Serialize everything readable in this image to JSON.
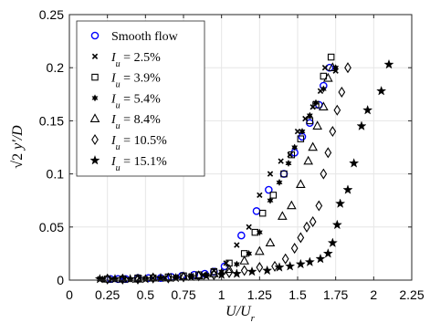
{
  "chart_data": {
    "type": "scatter",
    "xlabel": "U/U_r",
    "ylabel": "√2 y′/D",
    "xlim": [
      0,
      2.25
    ],
    "ylim": [
      0,
      0.25
    ],
    "xticks": [
      "0",
      "0.25",
      "0.5",
      "0.75",
      "1",
      "1.25",
      "1.5",
      "1.75",
      "2",
      "2.25"
    ],
    "yticks": [
      "0",
      "0.05",
      "0.1",
      "0.15",
      "0.2",
      "0.25"
    ],
    "grid": true,
    "legend_position": "top-left",
    "series": [
      {
        "name": "Smooth flow",
        "marker": "circle",
        "color": "#0000ff",
        "points": [
          [
            0.27,
            0.001
          ],
          [
            0.32,
            0.001
          ],
          [
            0.37,
            0.001
          ],
          [
            0.45,
            0.002
          ],
          [
            0.52,
            0.002
          ],
          [
            0.6,
            0.002
          ],
          [
            0.67,
            0.003
          ],
          [
            0.74,
            0.004
          ],
          [
            0.82,
            0.005
          ],
          [
            0.89,
            0.006
          ],
          [
            0.95,
            0.008
          ],
          [
            1.02,
            0.013
          ],
          [
            1.13,
            0.042
          ],
          [
            1.23,
            0.065
          ],
          [
            1.31,
            0.085
          ],
          [
            1.41,
            0.1
          ],
          [
            1.48,
            0.12
          ],
          [
            1.53,
            0.135
          ],
          [
            1.58,
            0.148
          ],
          [
            1.64,
            0.165
          ],
          [
            1.67,
            0.183
          ],
          [
            1.71,
            0.2
          ]
        ]
      },
      {
        "name": "I_u = 2.5%",
        "marker": "x",
        "color": "#000000",
        "points": [
          [
            0.2,
            0.001
          ],
          [
            0.28,
            0.001
          ],
          [
            0.36,
            0.001
          ],
          [
            0.46,
            0.002
          ],
          [
            0.55,
            0.002
          ],
          [
            0.63,
            0.002
          ],
          [
            0.7,
            0.003
          ],
          [
            0.8,
            0.004
          ],
          [
            0.88,
            0.005
          ],
          [
            0.95,
            0.009
          ],
          [
            1.03,
            0.016
          ],
          [
            1.1,
            0.033
          ],
          [
            1.18,
            0.05
          ],
          [
            1.25,
            0.08
          ],
          [
            1.32,
            0.1
          ],
          [
            1.39,
            0.112
          ],
          [
            1.45,
            0.118
          ],
          [
            1.5,
            0.14
          ],
          [
            1.55,
            0.152
          ],
          [
            1.6,
            0.163
          ],
          [
            1.65,
            0.178
          ],
          [
            1.68,
            0.2
          ],
          [
            1.75,
            0.197
          ]
        ]
      },
      {
        "name": "I_u = 3.9%",
        "marker": "square",
        "color": "#000000",
        "points": [
          [
            0.25,
            0.001
          ],
          [
            0.35,
            0.001
          ],
          [
            0.45,
            0.002
          ],
          [
            0.55,
            0.002
          ],
          [
            0.65,
            0.003
          ],
          [
            0.75,
            0.004
          ],
          [
            0.85,
            0.005
          ],
          [
            0.95,
            0.008
          ],
          [
            1.05,
            0.016
          ],
          [
            1.15,
            0.025
          ],
          [
            1.22,
            0.045
          ],
          [
            1.27,
            0.063
          ],
          [
            1.34,
            0.08
          ],
          [
            1.41,
            0.1
          ],
          [
            1.46,
            0.118
          ],
          [
            1.52,
            0.133
          ],
          [
            1.58,
            0.15
          ],
          [
            1.62,
            0.165
          ],
          [
            1.67,
            0.192
          ],
          [
            1.72,
            0.21
          ]
        ]
      },
      {
        "name": "I_u = 5.4%",
        "marker": "hexagram",
        "color": "#000000",
        "points": [
          [
            0.22,
            0.001
          ],
          [
            0.3,
            0.001
          ],
          [
            0.4,
            0.001
          ],
          [
            0.5,
            0.002
          ],
          [
            0.6,
            0.002
          ],
          [
            0.7,
            0.003
          ],
          [
            0.8,
            0.004
          ],
          [
            0.9,
            0.005
          ],
          [
            1.0,
            0.008
          ],
          [
            1.1,
            0.015
          ],
          [
            1.18,
            0.025
          ],
          [
            1.25,
            0.045
          ],
          [
            1.32,
            0.075
          ],
          [
            1.38,
            0.092
          ],
          [
            1.44,
            0.11
          ],
          [
            1.48,
            0.125
          ],
          [
            1.53,
            0.14
          ],
          [
            1.58,
            0.155
          ],
          [
            1.62,
            0.167
          ],
          [
            1.67,
            0.18
          ],
          [
            1.75,
            0.2
          ]
        ]
      },
      {
        "name": "I_u = 8.4%",
        "marker": "triangle",
        "color": "#000000",
        "points": [
          [
            0.25,
            0.001
          ],
          [
            0.35,
            0.001
          ],
          [
            0.45,
            0.001
          ],
          [
            0.55,
            0.002
          ],
          [
            0.65,
            0.002
          ],
          [
            0.75,
            0.003
          ],
          [
            0.85,
            0.004
          ],
          [
            0.95,
            0.006
          ],
          [
            1.05,
            0.01
          ],
          [
            1.15,
            0.018
          ],
          [
            1.25,
            0.027
          ],
          [
            1.32,
            0.035
          ],
          [
            1.4,
            0.06
          ],
          [
            1.46,
            0.07
          ],
          [
            1.52,
            0.09
          ],
          [
            1.57,
            0.112
          ],
          [
            1.6,
            0.125
          ],
          [
            1.63,
            0.145
          ],
          [
            1.67,
            0.163
          ],
          [
            1.7,
            0.19
          ],
          [
            1.73,
            0.2
          ]
        ]
      },
      {
        "name": "I_u = 10.5%",
        "marker": "diamond",
        "color": "#000000",
        "points": [
          [
            0.25,
            0.001
          ],
          [
            0.35,
            0.001
          ],
          [
            0.45,
            0.001
          ],
          [
            0.55,
            0.002
          ],
          [
            0.65,
            0.002
          ],
          [
            0.75,
            0.003
          ],
          [
            0.85,
            0.004
          ],
          [
            0.95,
            0.005
          ],
          [
            1.05,
            0.007
          ],
          [
            1.15,
            0.009
          ],
          [
            1.25,
            0.012
          ],
          [
            1.35,
            0.013
          ],
          [
            1.42,
            0.02
          ],
          [
            1.48,
            0.03
          ],
          [
            1.52,
            0.04
          ],
          [
            1.56,
            0.05
          ],
          [
            1.6,
            0.055
          ],
          [
            1.64,
            0.07
          ],
          [
            1.67,
            0.1
          ],
          [
            1.7,
            0.12
          ],
          [
            1.73,
            0.14
          ],
          [
            1.76,
            0.16
          ],
          [
            1.79,
            0.177
          ],
          [
            1.83,
            0.2
          ]
        ]
      },
      {
        "name": "I_u = 15.1%",
        "marker": "pentagram",
        "color": "#000000",
        "points": [
          [
            0.2,
            0.001
          ],
          [
            0.3,
            0.001
          ],
          [
            0.4,
            0.001
          ],
          [
            0.5,
            0.001
          ],
          [
            0.6,
            0.002
          ],
          [
            0.7,
            0.002
          ],
          [
            0.8,
            0.003
          ],
          [
            0.9,
            0.004
          ],
          [
            1.0,
            0.005
          ],
          [
            1.1,
            0.006
          ],
          [
            1.2,
            0.008
          ],
          [
            1.3,
            0.009
          ],
          [
            1.38,
            0.012
          ],
          [
            1.45,
            0.013
          ],
          [
            1.52,
            0.015
          ],
          [
            1.58,
            0.017
          ],
          [
            1.65,
            0.02
          ],
          [
            1.7,
            0.025
          ],
          [
            1.73,
            0.035
          ],
          [
            1.76,
            0.052
          ],
          [
            1.78,
            0.072
          ],
          [
            1.83,
            0.085
          ],
          [
            1.87,
            0.11
          ],
          [
            1.92,
            0.145
          ],
          [
            1.96,
            0.16
          ],
          [
            2.05,
            0.178
          ],
          [
            2.1,
            0.203
          ]
        ]
      }
    ]
  }
}
